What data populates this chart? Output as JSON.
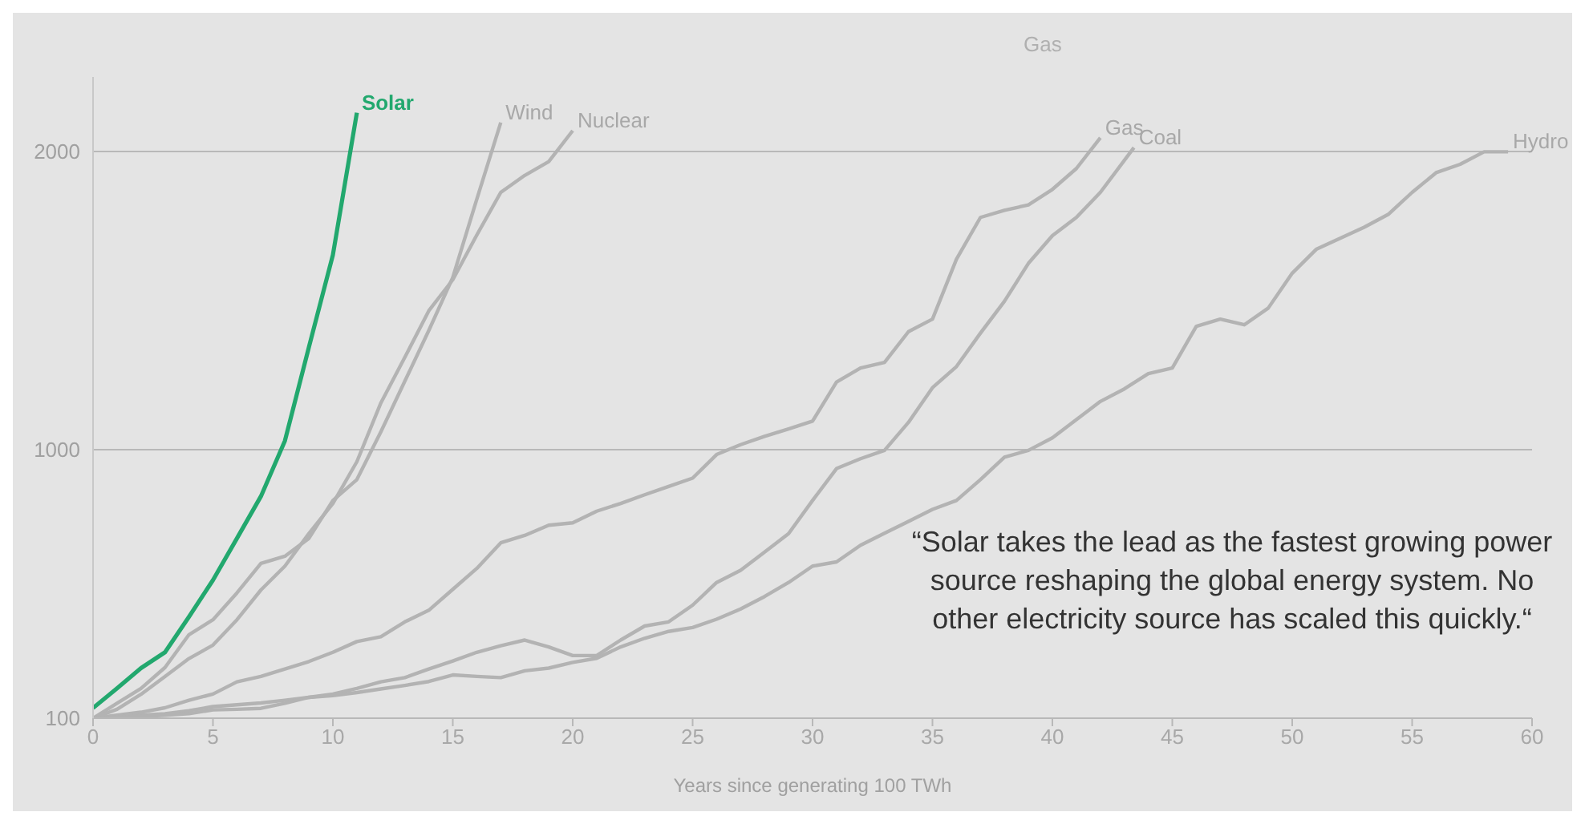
{
  "chart_data": {
    "type": "line",
    "xlabel": "Years since generating 100 TWh",
    "xlim": [
      0,
      60
    ],
    "xticks": [
      0,
      5,
      10,
      15,
      20,
      25,
      30,
      35,
      40,
      45,
      50,
      55,
      60
    ],
    "ylim": [
      100,
      2250
    ],
    "yticks": [
      100,
      1000,
      2000
    ],
    "grid": "y",
    "legend": false,
    "marker": "none",
    "line_style": "solid",
    "series": [
      {
        "name": "Solar",
        "color": "#22a86e",
        "x": [
          0,
          1,
          2,
          3,
          4,
          5,
          6,
          7,
          8,
          9,
          10,
          11
        ],
        "values": [
          134,
          200,
          268,
          321,
          440,
          563,
          703,
          844,
          1030,
          1344,
          1653,
          2130
        ]
      },
      {
        "name": "Wind",
        "color": "#b3b3b3",
        "x": [
          0,
          1,
          2,
          3,
          4,
          5,
          6,
          7,
          8,
          9,
          10,
          11,
          12,
          13,
          14,
          15,
          16,
          17
        ],
        "values": [
          100,
          150,
          200,
          270,
          380,
          430,
          520,
          619,
          643,
          703,
          830,
          900,
          1060,
          1230,
          1400,
          1578,
          1840,
          2097
        ]
      },
      {
        "name": "Nuclear",
        "color": "#b3b3b3",
        "x": [
          0,
          1,
          2,
          3,
          4,
          5,
          6,
          7,
          8,
          9,
          10,
          11,
          12,
          13,
          14,
          15,
          16,
          17,
          18,
          19,
          20
        ],
        "values": [
          100,
          130,
          180,
          240,
          300,
          345,
          430,
          530,
          610,
          719,
          820,
          960,
          1157,
          1310,
          1466,
          1570,
          1720,
          1863,
          1920,
          1966,
          2070
        ]
      },
      {
        "name": "Gas",
        "color": "#b3b3b3",
        "x": [
          0,
          1,
          2,
          3,
          4,
          5,
          6,
          7,
          8,
          9,
          10,
          11,
          12,
          13,
          14,
          15,
          16,
          17,
          18,
          19,
          20,
          21,
          22,
          23,
          24,
          25,
          26,
          27,
          28,
          29,
          30,
          31,
          32,
          33,
          34,
          35,
          36,
          37,
          38,
          39,
          40,
          41,
          42
        ],
        "values": [
          100,
          110,
          120,
          135,
          160,
          181,
          222,
          240,
          265,
          290,
          321,
          357,
          373,
          423,
          462,
          532,
          602,
          688,
          713,
          747,
          755,
          794,
          820,
          849,
          877,
          905,
          984,
          1017,
          1045,
          1070,
          1096,
          1227,
          1274,
          1293,
          1396,
          1438,
          1639,
          1779,
          1803,
          1821,
          1873,
          1943,
          2046
        ]
      },
      {
        "name": "Coal",
        "color": "#b3b3b3",
        "x": [
          0,
          1,
          2,
          3,
          4,
          5,
          6,
          7,
          8,
          9,
          10,
          11,
          12,
          13,
          14,
          15,
          16,
          17,
          18,
          19,
          20,
          21,
          22,
          23,
          24,
          25,
          26,
          27,
          28,
          29,
          30,
          31,
          32,
          33,
          34,
          35,
          36,
          37,
          38,
          39,
          40,
          41,
          42,
          43.4
        ],
        "values": [
          100,
          105,
          110,
          115,
          125,
          139,
          145,
          151,
          160,
          170,
          181,
          200,
          222,
          236,
          265,
          292,
          321,
          343,
          362,
          339,
          310,
          310,
          362,
          409,
          423,
          479,
          555,
          596,
          657,
          719,
          830,
          937,
          970,
          998,
          1092,
          1208,
          1279,
          1391,
          1498,
          1625,
          1718,
          1779,
          1863,
          2013
        ]
      },
      {
        "name": "Hydro",
        "color": "#b3b3b3",
        "x": [
          0,
          1,
          2,
          3,
          4,
          5,
          6,
          7,
          8,
          9,
          10,
          11,
          12,
          13,
          14,
          15,
          16,
          17,
          18,
          19,
          20,
          21,
          22,
          23,
          24,
          25,
          26,
          27,
          28,
          29,
          30,
          31,
          32,
          33,
          34,
          35,
          36,
          37,
          38,
          39,
          40,
          41,
          42,
          43,
          44,
          45,
          46,
          47,
          48,
          49,
          50,
          51,
          52,
          53,
          54,
          55,
          56,
          57,
          58,
          59
        ],
        "values": [
          100,
          103,
          106,
          110,
          115,
          128,
          130,
          133,
          150,
          170,
          176,
          186,
          198,
          210,
          223,
          245,
          240,
          236,
          259,
          268,
          287,
          301,
          339,
          368,
          391,
          404,
          432,
          466,
          508,
          555,
          610,
          624,
          680,
          720,
          760,
          800,
          830,
          900,
          975,
          998,
          1040,
          1101,
          1162,
          1204,
          1255,
          1274,
          1414,
          1438,
          1419,
          1475,
          1592,
          1672,
          1709,
          1746,
          1789,
          1863,
          1929,
          1957,
          1999,
          1999
        ]
      }
    ],
    "annotations": [
      "Gas",
      "“Solar takes the lead as the fastest growing power source reshaping the global energy system. No other electricity source has scaled this quickly.“"
    ]
  }
}
